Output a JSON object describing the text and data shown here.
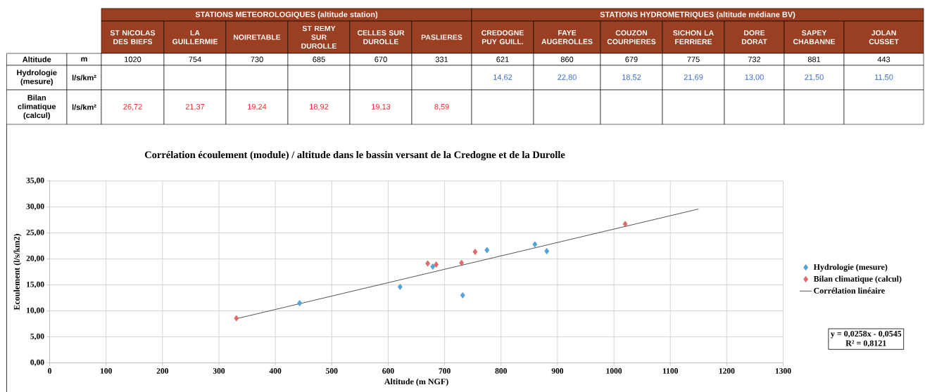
{
  "chart_data": [
    {
      "type": "other",
      "annotations": [
        "STATIONS METEOROLOGIQUES (altitude station)",
        "STATIONS HYDROMETRIQUES (altitude médiane BV)"
      ],
      "categories": [
        "ST NICOLAS DES BIEFS",
        "LA GUILLERMIE",
        "NOIRETABLE",
        "ST REMY SUR DUROLLE",
        "CELLES SUR DUROLLE",
        "PASLIERES",
        "CREDOGNE PUY GUILL.",
        "FAYE AUGEROLLES",
        "COUZON COURPIERES",
        "SICHON LA FERRIERE",
        "DORE DORAT",
        "SAPEY CHABANNE",
        "JOLAN CUSSET"
      ],
      "y_categories": [
        "Altitude",
        "Hydrologie (mesure)",
        "Bilan climatique (calcul)"
      ],
      "y2_categories": [
        "m",
        "l/s/km²",
        "l/s/km²"
      ],
      "cell_labels": [
        [
          "1020",
          "754",
          "730",
          "685",
          "670",
          "331",
          "621",
          "860",
          "679",
          "775",
          "732",
          "881",
          "443"
        ],
        [
          null,
          null,
          null,
          null,
          null,
          null,
          "14,62",
          "22,80",
          "18,52",
          "21,69",
          "13,00",
          "21,50",
          "11,50"
        ],
        [
          "26,72",
          "21,37",
          "19,24",
          "18,92",
          "19,13",
          "8,59",
          null,
          null,
          null,
          null,
          null,
          null,
          null
        ]
      ]
    },
    {
      "type": "scatter",
      "title": "Corrélation écoulement (module) / altitude dans le bassin versant de la Credogne et de la Durolle",
      "xlabel": "Altitude (m NGF)",
      "ylabel": "Ecoulement (l/s/km2)",
      "series": [
        {
          "name": "Hydrologie (mesure)",
          "color": "#4fa6dc",
          "x": [
            621,
            860,
            679,
            775,
            732,
            881,
            443
          ],
          "values": [
            14.62,
            22.8,
            18.52,
            21.69,
            13.0,
            21.5,
            11.5
          ]
        },
        {
          "name": "Bilan climatique (calcul)",
          "color": "#e8686b",
          "x": [
            1020,
            754,
            730,
            685,
            670,
            331
          ],
          "values": [
            26.72,
            21.37,
            19.24,
            18.92,
            19.13,
            8.59
          ]
        },
        {
          "name": "Corrélation linéaire",
          "type": "line",
          "marker": "none",
          "color": "#404040",
          "x": [
            331,
            1150
          ],
          "values": [
            8.5,
            29.6
          ]
        }
      ],
      "xlim": [
        0,
        1300
      ],
      "ylim": [
        0,
        35
      ],
      "xticks": [
        0,
        100,
        200,
        300,
        400,
        500,
        600,
        700,
        800,
        900,
        1000,
        1100,
        1200,
        1300
      ],
      "yticks": [
        {
          "value": 0,
          "label": "0,00"
        },
        {
          "value": 5,
          "label": "5,00"
        },
        {
          "value": 10,
          "label": "10,00"
        },
        {
          "value": 15,
          "label": "15,00"
        },
        {
          "value": 20,
          "label": "20,00"
        },
        {
          "value": 25,
          "label": "25,00"
        },
        {
          "value": 30,
          "label": "30,00"
        },
        {
          "value": 35,
          "label": "35,00"
        }
      ],
      "grid": true,
      "legend": "right",
      "marker": "diamond",
      "annotations": [
        "y = 0,0258x - 0,0545",
        "R² = 0,8121"
      ]
    }
  ]
}
